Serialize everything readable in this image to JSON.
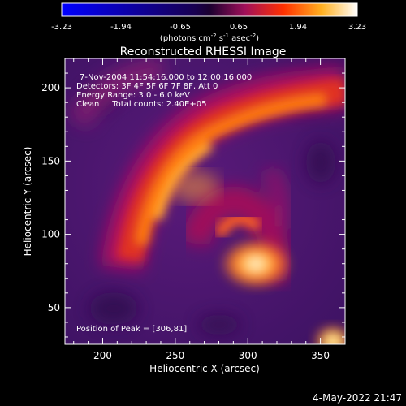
{
  "colorbar": {
    "ticks": [
      "-3.23",
      "-1.94",
      "-0.65",
      "0.65",
      "1.94",
      "3.23"
    ],
    "unit_main": "(photons cm",
    "unit_exp1": "-2",
    "unit_mid": " s",
    "unit_exp2": "-1",
    "unit_tail": " asec",
    "unit_exp3": "-2",
    "unit_close": ")"
  },
  "title": "Reconstructed RHESSI Image",
  "info": {
    "line1": "7-Nov-2004 11:54:16.000 to 12:00:16.000",
    "line2": "Detectors: 3F 4F 5F 6F 7F 8F, Att 0",
    "line3": "Energy Range: 3.0 - 6.0 keV",
    "line4": "Clean     Total counts: 2.40E+05",
    "peak": "Position of Peak = [306,81]"
  },
  "axes": {
    "xlabel": "Heliocentric X (arcsec)",
    "ylabel": "Heliocentric Y (arcsec)",
    "xticks": [
      {
        "label": "200",
        "value": 200
      },
      {
        "label": "250",
        "value": 250
      },
      {
        "label": "300",
        "value": 300
      },
      {
        "label": "350",
        "value": 350
      }
    ],
    "yticks": [
      {
        "label": "50",
        "value": 50
      },
      {
        "label": "100",
        "value": 100
      },
      {
        "label": "150",
        "value": 150
      },
      {
        "label": "200",
        "value": 200
      }
    ],
    "xlim": [
      174,
      367
    ],
    "ylim": [
      25,
      220
    ]
  },
  "timestamp": "4-May-2022 21:47"
}
